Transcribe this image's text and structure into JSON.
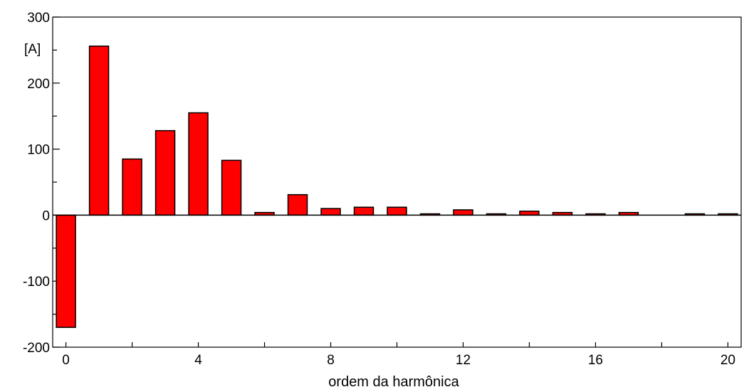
{
  "chart_data": {
    "type": "bar",
    "xlabel": "ordem da harmônica",
    "ylabel": "[A]",
    "x": [
      0,
      1,
      2,
      3,
      4,
      5,
      6,
      7,
      8,
      9,
      10,
      11,
      12,
      13,
      14,
      15,
      16,
      17,
      18,
      19,
      20
    ],
    "values": [
      -170,
      256,
      85,
      128,
      155,
      83,
      4,
      31,
      10,
      12,
      12,
      2,
      8,
      2,
      6,
      4,
      2,
      4,
      0,
      2,
      2
    ],
    "xlim": [
      -0.4,
      20.4
    ],
    "ylim": [
      -200,
      300
    ],
    "x_ticks": [
      0,
      4,
      8,
      12,
      16,
      20
    ],
    "y_ticks": [
      -200,
      -100,
      0,
      100,
      200,
      300
    ],
    "bar_color": "#ff0000",
    "grid": false
  }
}
